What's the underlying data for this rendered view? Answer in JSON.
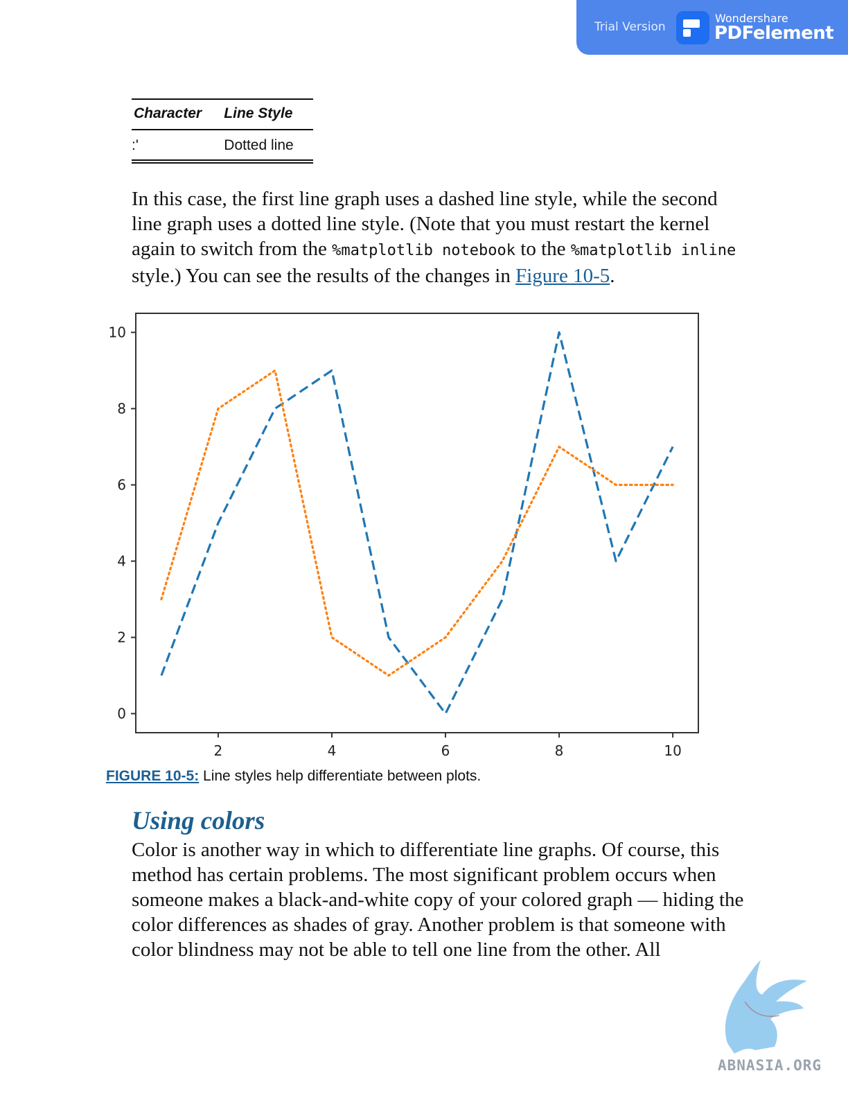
{
  "banner": {
    "trial_text": "Trial Version",
    "brand_small": "Wondershare",
    "brand_big": "PDFelement",
    "color": "#4f86ec"
  },
  "table": {
    "headers": [
      "Character",
      "Line Style"
    ],
    "rows": [
      [
        ":'",
        "Dotted line"
      ]
    ]
  },
  "paragraph1": {
    "part1": "In this case, the first line graph uses a dashed line style, while the second line graph uses a dotted line style. (Note that you must restart the kernel again to switch from the ",
    "code1": "%matplotlib notebook",
    "part2": " to the ",
    "code2": "%matplotlib inline",
    "part3": " style.) You can see the results of the changes in ",
    "link": "Figure 10-5",
    "part4": "."
  },
  "chart_data": {
    "type": "line",
    "x": [
      1,
      2,
      3,
      4,
      5,
      6,
      7,
      8,
      9,
      10
    ],
    "series": [
      {
        "values": [
          1,
          5,
          8,
          9,
          2,
          0,
          3,
          10,
          4,
          7
        ],
        "style": "dashed",
        "color": "#1f77b4"
      },
      {
        "values": [
          3,
          8,
          9,
          2,
          1,
          2,
          4,
          7,
          6,
          6
        ],
        "style": "dotted",
        "color": "#ff7f0e"
      }
    ],
    "xticks": [
      2,
      4,
      6,
      8,
      10
    ],
    "yticks": [
      0,
      2,
      4,
      6,
      8,
      10
    ],
    "xlim": [
      0.55,
      10.45
    ],
    "ylim": [
      -0.5,
      10.5
    ],
    "title": "",
    "xlabel": "",
    "ylabel": ""
  },
  "caption": {
    "label": "FIGURE 10-5:",
    "text": " Line styles help differentiate between plots."
  },
  "section": {
    "heading": "Using colors",
    "paragraph": "Color is another way in which to differentiate line graphs. Of course, this method has certain problems. The most significant problem occurs when someone makes a black-and-white copy of your colored graph — hiding the color differences as shades of gray. Another problem is that someone with color blindness may not be able to tell one line from the other. All"
  },
  "watermark": {
    "site": "ABNASIA.ORG"
  }
}
